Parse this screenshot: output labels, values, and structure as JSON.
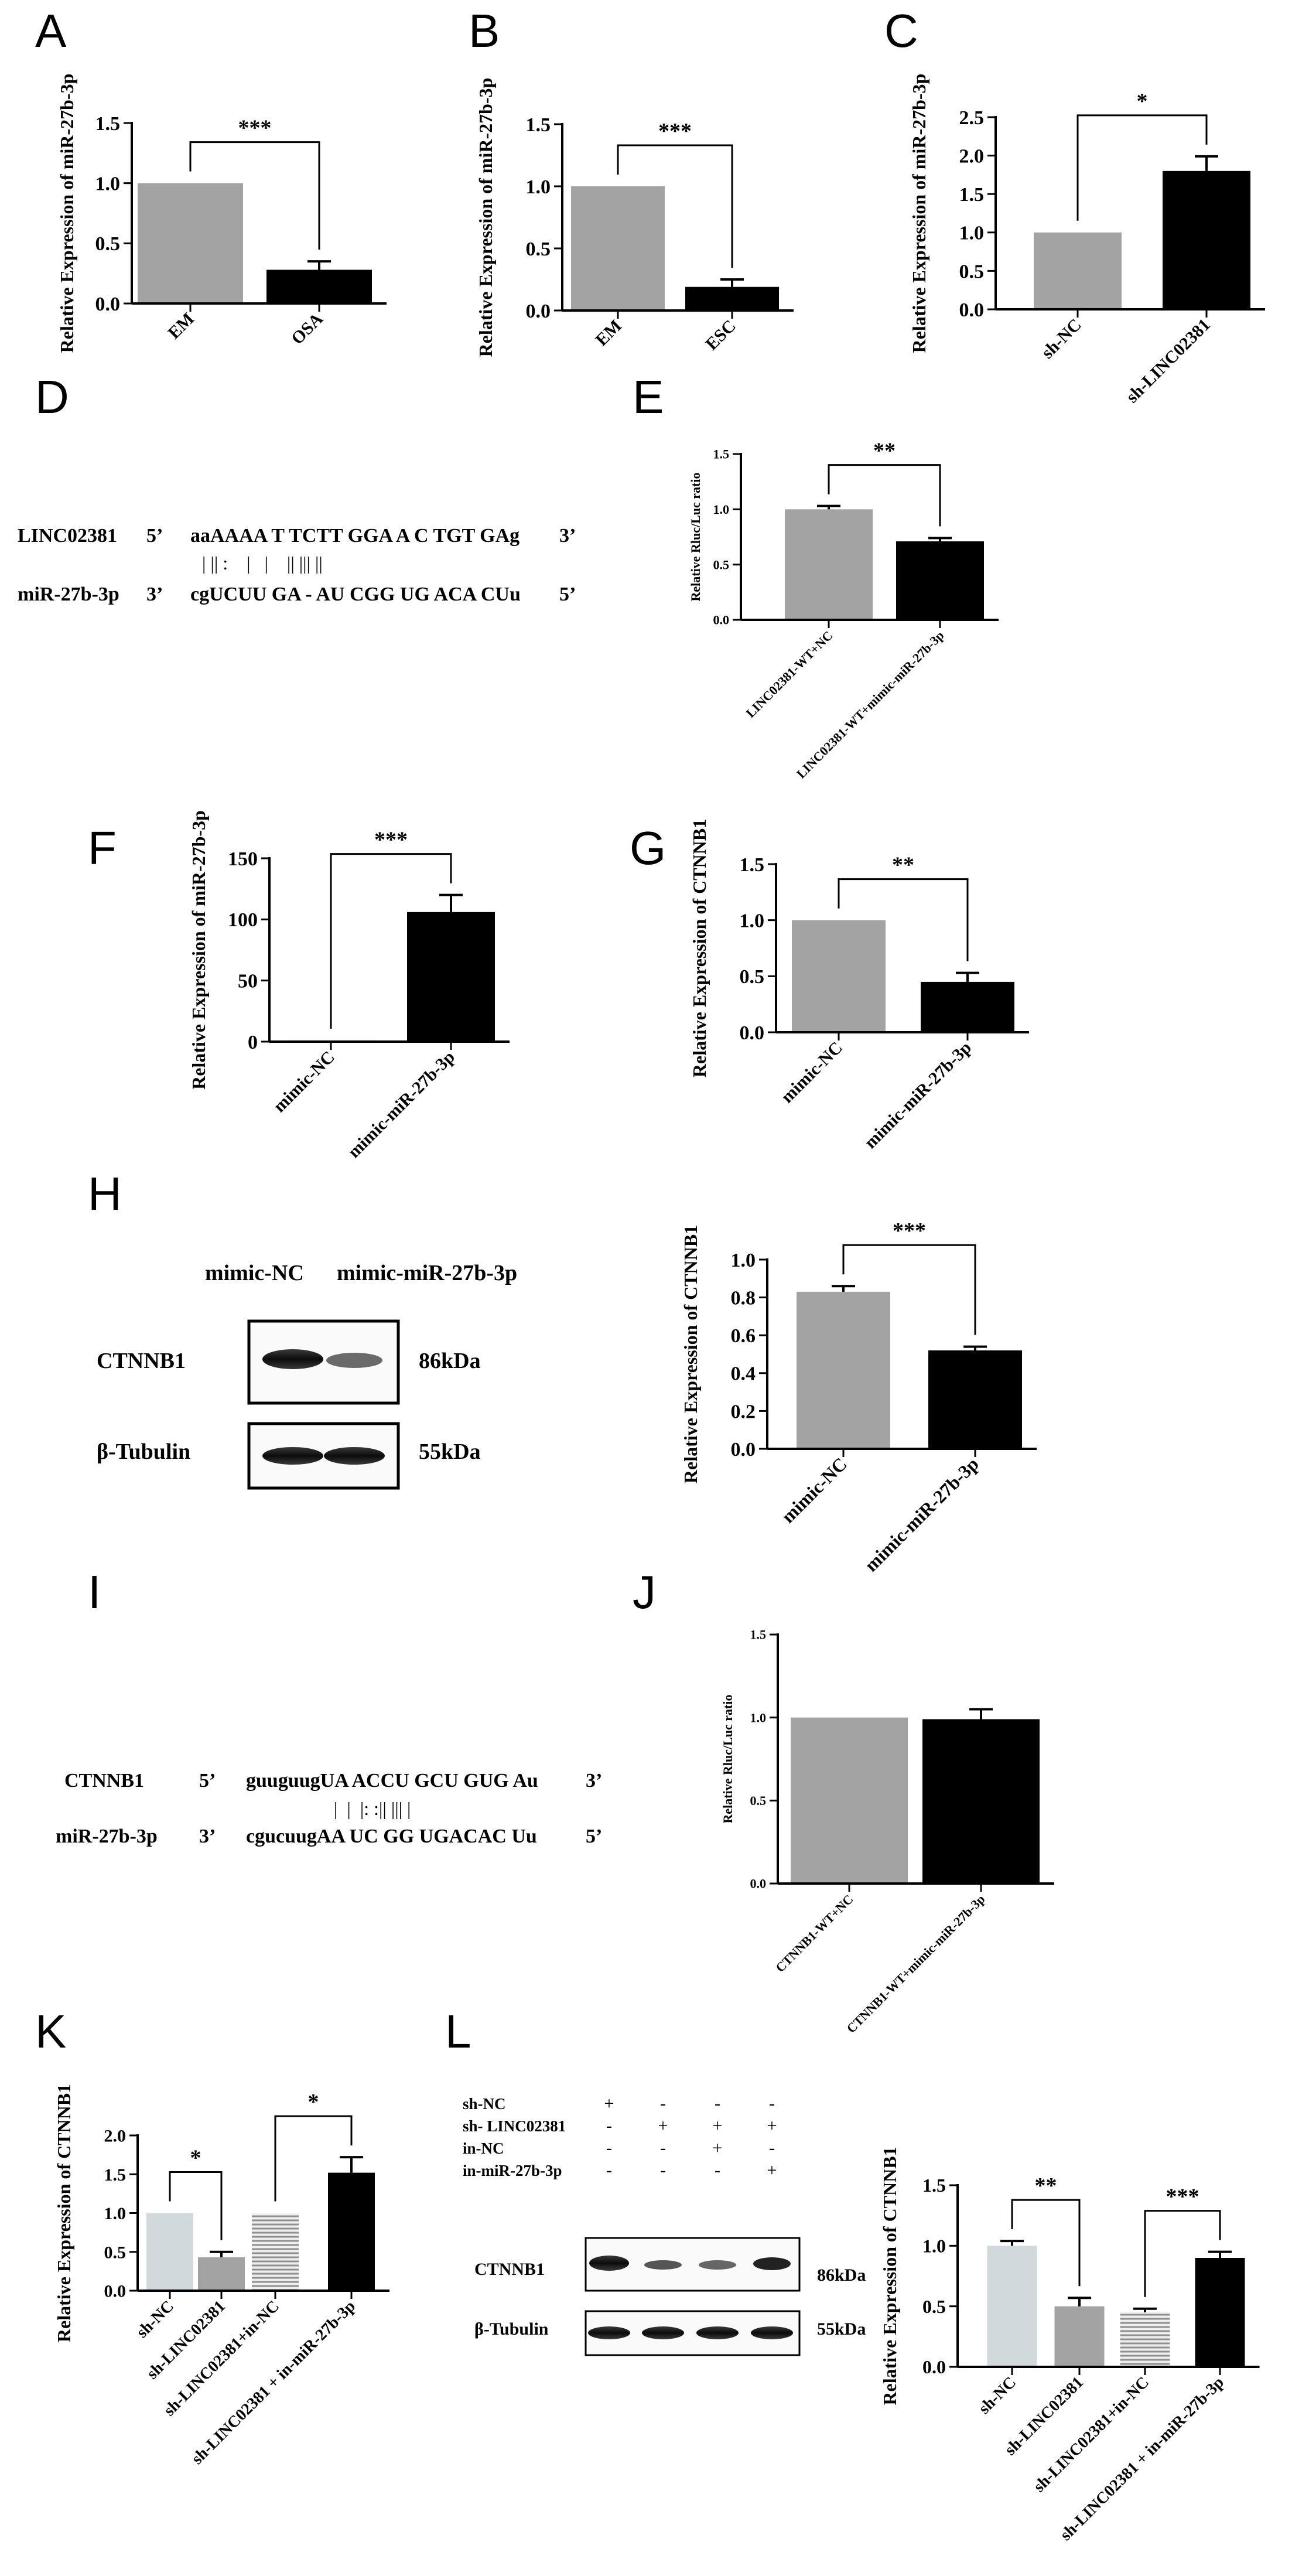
{
  "panel_labels": [
    "A",
    "B",
    "C",
    "D",
    "E",
    "F",
    "G",
    "H",
    "I",
    "J",
    "K",
    "L"
  ],
  "colors": {
    "gray": "#a3a3a3",
    "black": "#000000",
    "light": "#d2d9dc",
    "stripe": "#8f8f8f",
    "line": "#000000"
  },
  "chart_data": [
    {
      "id": "A",
      "type": "bar",
      "ylabel": "Relative Expression of miR-27b-3p",
      "categories": [
        "EM",
        "OSA"
      ],
      "values": [
        1.0,
        0.28
      ],
      "errors": [
        0,
        0.07
      ],
      "ylim": [
        0,
        1.5
      ],
      "yticks": [
        "0.0",
        "0.5",
        "1.0",
        "1.5"
      ],
      "significance": [
        {
          "from": 0,
          "to": 1,
          "label": "***"
        }
      ],
      "bar_colors": [
        "gray",
        "black"
      ]
    },
    {
      "id": "B",
      "type": "bar",
      "ylabel": "Relative Expression of miR-27b-3p",
      "categories": [
        "EM",
        "ESC"
      ],
      "values": [
        1.0,
        0.19
      ],
      "errors": [
        0,
        0.06
      ],
      "ylim": [
        0,
        1.5
      ],
      "yticks": [
        "0.0",
        "0.5",
        "1.0",
        "1.5"
      ],
      "significance": [
        {
          "from": 0,
          "to": 1,
          "label": "***"
        }
      ],
      "bar_colors": [
        "gray",
        "black"
      ]
    },
    {
      "id": "C",
      "type": "bar",
      "ylabel": "Relative Expression of miR-27b-3p",
      "categories": [
        "sh-NC",
        "sh-LINC02381"
      ],
      "values": [
        1.0,
        1.8
      ],
      "errors": [
        0,
        0.19
      ],
      "ylim": [
        0,
        2.5
      ],
      "yticks": [
        "0.0",
        "0.5",
        "1.0",
        "1.5",
        "2.0",
        "2.5"
      ],
      "significance": [
        {
          "from": 0,
          "to": 1,
          "label": "*"
        }
      ],
      "bar_colors": [
        "gray",
        "black"
      ]
    },
    {
      "id": "E",
      "type": "bar",
      "ylabel": "Relative Rluc/Luc ratio",
      "categories": [
        "LINC02381-WT+NC",
        "LINC02381-WT+mimic-miR-27b-3p"
      ],
      "values": [
        1.0,
        0.71
      ],
      "errors": [
        0.03,
        0.03
      ],
      "ylim": [
        0,
        1.5
      ],
      "yticks": [
        "0.0",
        "0.5",
        "1.0",
        "1.5"
      ],
      "significance": [
        {
          "from": 0,
          "to": 1,
          "label": "**"
        }
      ],
      "bar_colors": [
        "gray",
        "black"
      ]
    },
    {
      "id": "F",
      "type": "bar",
      "ylabel": "Relative Expression of miR-27b-3p",
      "categories": [
        "mimic-NC",
        "mimic-miR-27b-3p"
      ],
      "values": [
        1.0,
        106
      ],
      "errors": [
        0,
        14
      ],
      "ylim": [
        0,
        150
      ],
      "yticks": [
        "0",
        "50",
        "100",
        "150"
      ],
      "significance": [
        {
          "from": 0,
          "to": 1,
          "label": "***"
        }
      ],
      "bar_colors": [
        "gray",
        "black"
      ]
    },
    {
      "id": "G",
      "type": "bar",
      "ylabel": "Relative Expression of CTNNB1",
      "categories": [
        "mimic-NC",
        "mimic-miR-27b-3p"
      ],
      "values": [
        1.0,
        0.45
      ],
      "errors": [
        0,
        0.08
      ],
      "ylim": [
        0,
        1.5
      ],
      "yticks": [
        "0.0",
        "0.5",
        "1.0",
        "1.5"
      ],
      "significance": [
        {
          "from": 0,
          "to": 1,
          "label": "**"
        }
      ],
      "bar_colors": [
        "gray",
        "black"
      ]
    },
    {
      "id": "H",
      "type": "bar",
      "ylabel": "Relative Expression of CTNNB1",
      "categories": [
        "mimic-NC",
        "mimic-miR-27b-3p"
      ],
      "values": [
        0.83,
        0.52
      ],
      "errors": [
        0.03,
        0.02
      ],
      "ylim": [
        0,
        1.0
      ],
      "yticks": [
        "0.0",
        "0.2",
        "0.4",
        "0.6",
        "0.8",
        "1.0"
      ],
      "significance": [
        {
          "from": 0,
          "to": 1,
          "label": "***"
        }
      ],
      "bar_colors": [
        "gray",
        "black"
      ]
    },
    {
      "id": "J",
      "type": "bar",
      "ylabel": "Relative Rluc/Luc ratio",
      "categories": [
        "CTNNB1-WT+NC",
        "CTNNB1-WT+mimic-miR-27b-3p"
      ],
      "values": [
        1.0,
        0.99
      ],
      "errors": [
        0,
        0.06
      ],
      "ylim": [
        0,
        1.5
      ],
      "yticks": [
        "0.0",
        "0.5",
        "1.0",
        "1.5"
      ],
      "significance": [],
      "bar_colors": [
        "gray",
        "black"
      ]
    },
    {
      "id": "K",
      "type": "bar",
      "ylabel": "Relative Expression of CTNNB1",
      "categories": [
        "sh-NC",
        "sh-LINC02381",
        "sh-LINC02381+in-NC",
        "sh-LINC02381 + in-miR-27b-3p"
      ],
      "values": [
        1.0,
        0.43,
        1.0,
        1.52
      ],
      "errors": [
        0,
        0.07,
        0,
        0.2
      ],
      "ylim": [
        0,
        2.0
      ],
      "yticks": [
        "0.0",
        "0.5",
        "1.0",
        "1.5",
        "2.0"
      ],
      "significance": [
        {
          "from": 0,
          "to": 1,
          "label": "*"
        },
        {
          "from": 2,
          "to": 3,
          "label": "*"
        }
      ],
      "bar_colors": [
        "light",
        "gray",
        "stripe",
        "black"
      ]
    },
    {
      "id": "L",
      "type": "bar",
      "ylabel": "Relative Expression of CTNNB1",
      "categories": [
        "sh-NC",
        "sh-LINC02381",
        "sh-LINC02381+in-NC",
        "sh-LINC02381 + in-miR-27b-3p"
      ],
      "values": [
        1.0,
        0.5,
        0.45,
        0.9
      ],
      "errors": [
        0.04,
        0.07,
        0.03,
        0.05
      ],
      "ylim": [
        0,
        1.5
      ],
      "yticks": [
        "0.0",
        "0.5",
        "1.0",
        "1.5"
      ],
      "significance": [
        {
          "from": 0,
          "to": 1,
          "label": "**"
        },
        {
          "from": 2,
          "to": 3,
          "label": "***"
        }
      ],
      "bar_colors": [
        "light",
        "gray",
        "stripe",
        "black"
      ]
    }
  ],
  "sequence_D": {
    "top_name": "LINC02381",
    "top_5": "5’",
    "top_seq": "aaAAAA T TCTT GGA A C TGT GAg",
    "top_3": "3’",
    "bottom_name": "miR-27b-3p",
    "bottom_3": "3’",
    "bottom_seq": "cgUCUU GA - AU CGG UG ACA CUu",
    "bottom_5": "5’",
    "pairs": "| || :    |   |    || ||| ||"
  },
  "sequence_I": {
    "top_name": "CTNNB1",
    "top_5": "5’",
    "top_seq": "guuguugUA ACCU GCU GUG Au",
    "top_3": "3’",
    "bottom_name": "miR-27b-3p",
    "bottom_3": "3’",
    "bottom_seq": "cgucuugAA UC GG UGACAC Uu",
    "bottom_5": "5’",
    "pairs": "|  |  |: :|| ||| |"
  },
  "blot_H": {
    "lane_labels": [
      "mimic-NC",
      "mimic-miR-27b-3p"
    ],
    "rows": [
      {
        "protein": "CTNNB1",
        "size": "86kDa"
      },
      {
        "protein": "β-Tubulin",
        "size": "55kDa"
      }
    ]
  },
  "blot_L": {
    "conditions": [
      {
        "label": "sh-NC",
        "signs": [
          "+",
          "-",
          "-",
          "-"
        ]
      },
      {
        "label": "sh- LINC02381",
        "signs": [
          "-",
          "+",
          "+",
          "+"
        ]
      },
      {
        "label": "in-NC",
        "signs": [
          "-",
          "-",
          "+",
          "-"
        ]
      },
      {
        "label": "in-miR-27b-3p",
        "signs": [
          "-",
          "-",
          "-",
          "+"
        ]
      }
    ],
    "rows": [
      {
        "protein": "CTNNB1",
        "size": "86kDa"
      },
      {
        "protein": "β-Tubulin",
        "size": "55kDa"
      }
    ]
  }
}
